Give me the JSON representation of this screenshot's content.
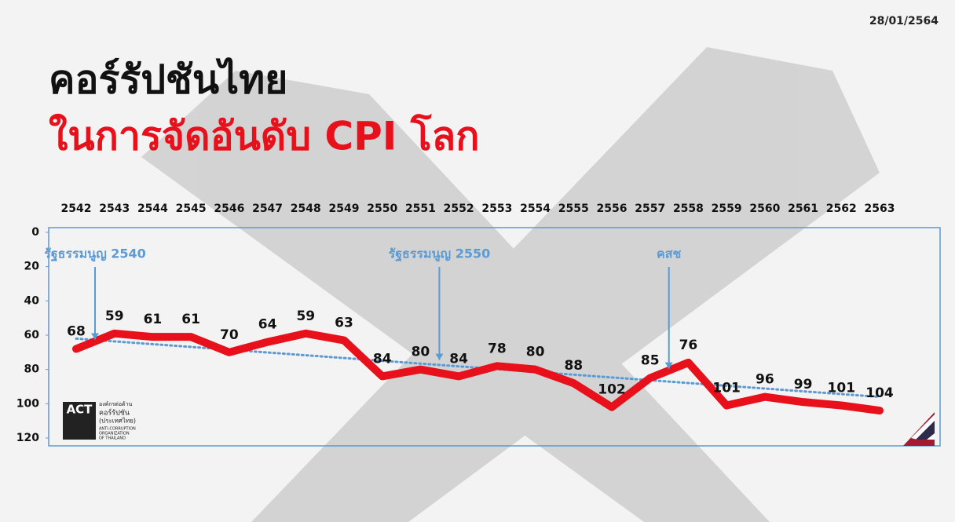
{
  "date": "28/01/2564",
  "logo": {
    "mark": "ACT",
    "name_th": [
      "องค์กรต่อต้าน",
      "คอร์รัปชัน",
      "(ประเทศไทย)"
    ],
    "name_en": [
      "ANTI-CORRUPTION",
      "ORGANIZATION",
      "OF THAILAND"
    ]
  },
  "chart_data": {
    "type": "line",
    "title": "คอร์รัปชันไทย",
    "subtitle": "ในการจัดอันดับ CPI โลก",
    "categories": [
      "2542",
      "2543",
      "2544",
      "2545",
      "2546",
      "2547",
      "2548",
      "2549",
      "2550",
      "2551",
      "2552",
      "2553",
      "2554",
      "2555",
      "2556",
      "2557",
      "2558",
      "2559",
      "2560",
      "2561",
      "2562",
      "2563"
    ],
    "values": [
      68,
      59,
      61,
      61,
      70,
      64,
      59,
      63,
      84,
      80,
      84,
      78,
      80,
      88,
      102,
      85,
      76,
      101,
      96,
      99,
      101,
      104
    ],
    "color": "#e8101a",
    "trend": {
      "values": [
        62,
        96
      ],
      "color": "#5b9bd5"
    },
    "ylim": [
      0,
      120
    ],
    "y_inverted": true,
    "yticks": [
      0,
      20,
      40,
      60,
      80,
      100,
      120
    ],
    "annotations": [
      {
        "text": "รัฐธรรมนูญ 2540",
        "category": 0
      },
      {
        "text": "รัฐธรรมนูญ 2550",
        "category": 9
      },
      {
        "text": "คสช",
        "category": 15
      }
    ]
  }
}
